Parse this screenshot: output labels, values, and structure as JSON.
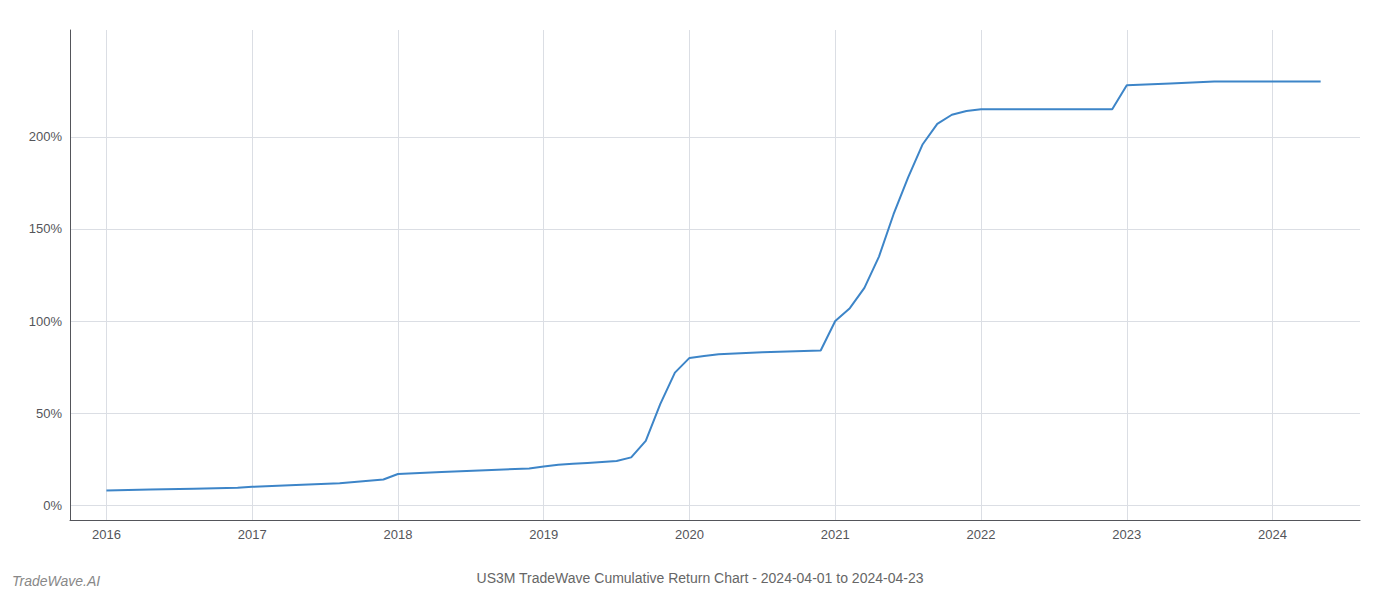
{
  "chart_data": {
    "type": "line",
    "title": "US3M TradeWave Cumulative Return Chart - 2024-04-01 to 2024-04-23",
    "annotations": [
      "TradeWave.AI"
    ],
    "x": [
      2016.0,
      2016.3,
      2016.6,
      2016.9,
      2017.0,
      2017.3,
      2017.6,
      2017.9,
      2018.0,
      2018.3,
      2018.6,
      2018.9,
      2019.0,
      2019.1,
      2019.2,
      2019.3,
      2019.4,
      2019.5,
      2019.6,
      2019.7,
      2019.8,
      2019.9,
      2020.0,
      2020.1,
      2020.2,
      2020.5,
      2020.9,
      2021.0,
      2021.1,
      2021.2,
      2021.3,
      2021.4,
      2021.5,
      2021.6,
      2021.7,
      2021.8,
      2021.9,
      2022.0,
      2022.1,
      2022.2,
      2022.5,
      2022.9,
      2023.0,
      2023.3,
      2023.6,
      2023.9,
      2024.0,
      2024.1,
      2024.33
    ],
    "values": [
      8,
      8.5,
      9,
      9.5,
      10,
      11,
      12,
      14,
      17,
      18,
      19,
      20,
      21,
      22,
      22.5,
      23,
      23.5,
      24,
      26,
      35,
      55,
      72,
      80,
      81,
      82,
      83,
      84,
      100,
      107,
      118,
      135,
      158,
      178,
      196,
      207,
      212,
      214,
      215,
      215,
      215,
      215,
      215,
      228,
      229,
      230,
      230,
      230,
      230,
      230
    ],
    "color": "#3d85c8",
    "xlim": [
      2015.75,
      2024.6
    ],
    "xticks": [
      2016,
      2017,
      2018,
      2019,
      2020,
      2021,
      2022,
      2023,
      2024
    ],
    "ylim": [
      -8,
      258
    ],
    "yticks": [
      {
        "value": 0,
        "label": "0%"
      },
      {
        "value": 50,
        "label": "50%"
      },
      {
        "value": 100,
        "label": "100%"
      },
      {
        "value": 150,
        "label": "150%"
      },
      {
        "value": 200,
        "label": "200%"
      }
    ],
    "grid": true
  }
}
